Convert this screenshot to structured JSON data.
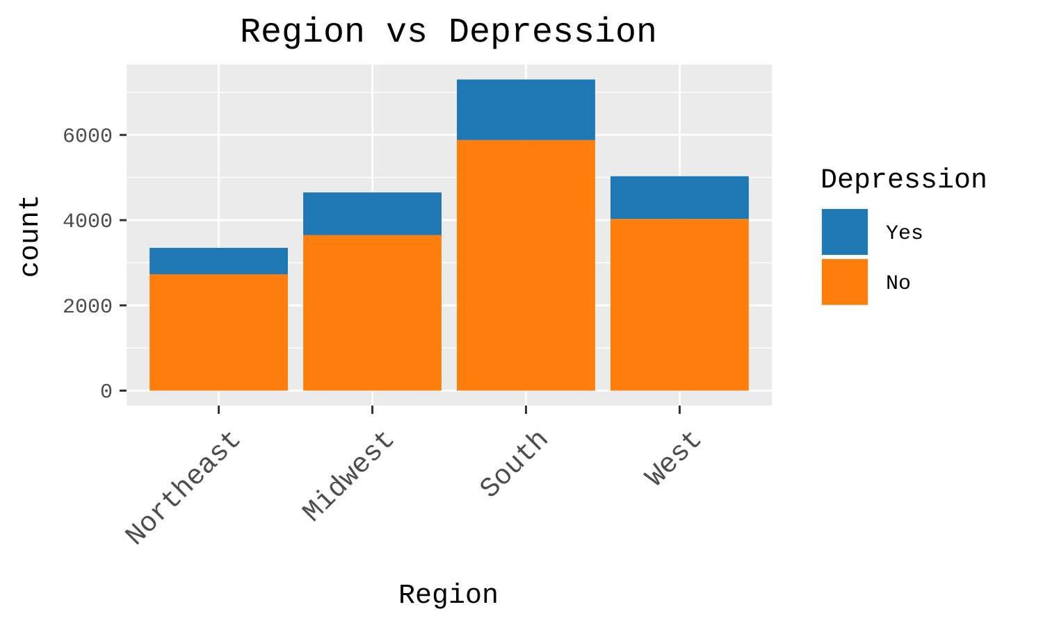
{
  "chart_data": {
    "type": "bar",
    "stacked": true,
    "title": "Region vs Depression",
    "xlabel": "Region",
    "ylabel": "count",
    "categories": [
      "Northeast",
      "Midwest",
      "South",
      "West"
    ],
    "series": [
      {
        "name": "No",
        "values": [
          2730,
          3650,
          5880,
          4030
        ],
        "color": "#ff7f0e"
      },
      {
        "name": "Yes",
        "values": [
          620,
          1000,
          1420,
          1000
        ],
        "color": "#1f77b4"
      }
    ],
    "ylim": [
      -350,
      7650
    ],
    "yticks": [
      0,
      2000,
      4000,
      6000
    ],
    "ytick_labels": [
      "0",
      "2000",
      "4000",
      "6000"
    ],
    "grid": true,
    "panel_background": "#ebebeb",
    "legend": {
      "title": "Depression",
      "placement": "right",
      "entries": [
        {
          "label": "Yes",
          "color": "#1f77b4"
        },
        {
          "label": "No",
          "color": "#ff7f0e"
        }
      ]
    }
  }
}
